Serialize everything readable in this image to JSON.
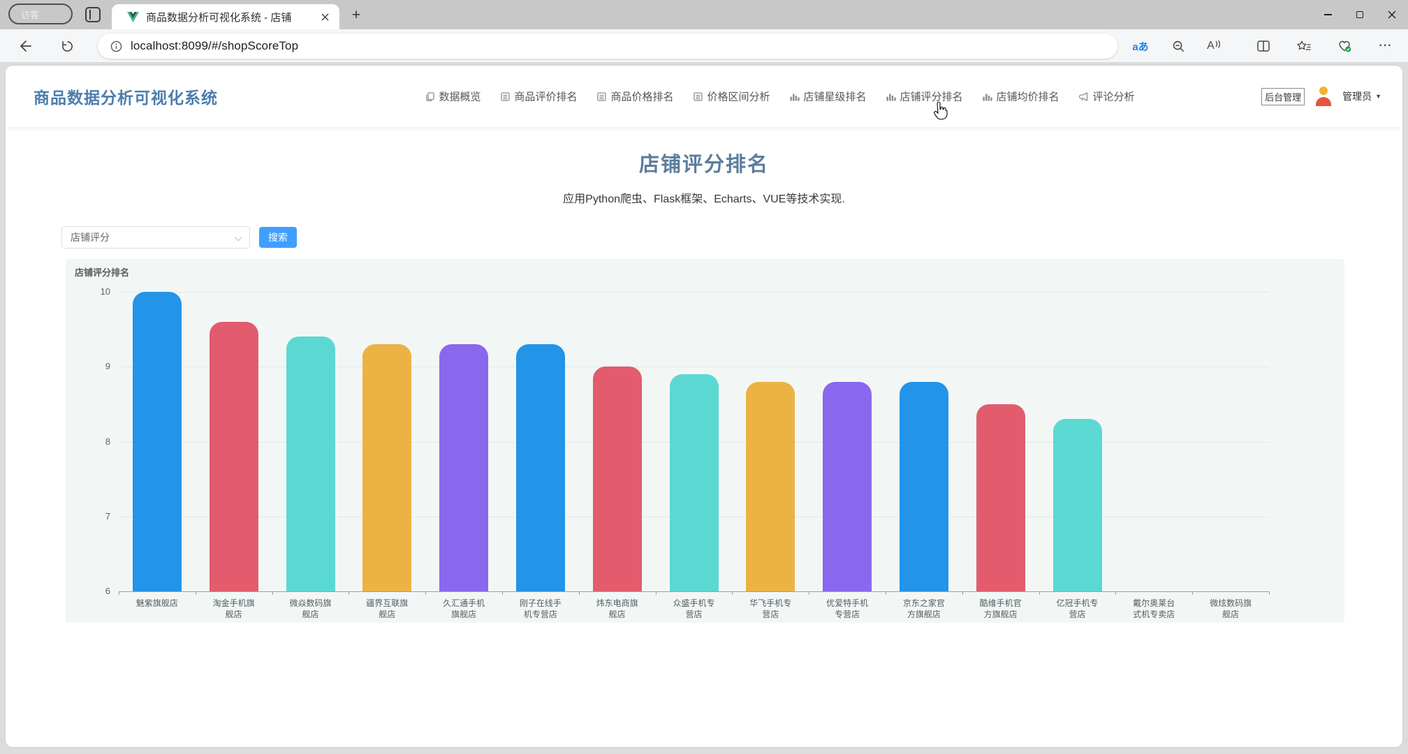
{
  "browser": {
    "profile_label": "访客",
    "tab_title": "商品数据分析可视化系统 - 店铺",
    "url": "localhost:8099/#/shopScoreTop",
    "icons": {
      "translate": "aあ",
      "read_aloud": "A",
      "new_tab": "+",
      "more": "···"
    }
  },
  "header": {
    "app_title": "商品数据分析可视化系统",
    "nav": [
      {
        "label": "数据概览",
        "icon": "copy-icon"
      },
      {
        "label": "商品评价排名",
        "icon": "list-icon"
      },
      {
        "label": "商品价格排名",
        "icon": "list-icon"
      },
      {
        "label": "价格区间分析",
        "icon": "list-icon"
      },
      {
        "label": "店铺星级排名",
        "icon": "bar-chart-icon"
      },
      {
        "label": "店铺评分排名",
        "icon": "bar-chart-icon"
      },
      {
        "label": "店铺均价排名",
        "icon": "bar-chart-icon"
      },
      {
        "label": "评论分析",
        "icon": "megaphone-icon"
      }
    ],
    "admin_button": "后台管理",
    "user_label": "管理员",
    "caret": "▼"
  },
  "main": {
    "page_title": "店铺评分排名",
    "subtitle": "应用Python爬虫、Flask框架、Echarts、VUE等技术实现.",
    "filter_select_value": "店铺评分",
    "search_button": "搜索"
  },
  "chart_data": {
    "type": "bar",
    "title": "店铺评分排名",
    "categories": [
      "魅紫旗舰店",
      "淘金手机旗舰店",
      "微焱数码旗舰店",
      "疆界互联旗舰店",
      "久汇通手机旗舰店",
      "刚子在线手机专营店",
      "炜东电商旗舰店",
      "众盛手机专营店",
      "华飞手机专营店",
      "优爱特手机专营店",
      "京东之家官方旗舰店",
      "酷维手机官方旗舰店",
      "亿冠手机专营店",
      "戴尔奥莱台式机专卖店",
      "微炫数码旗舰店"
    ],
    "values": [
      10,
      9.6,
      9.4,
      9.3,
      9.3,
      9.3,
      9.0,
      8.9,
      8.8,
      8.8,
      8.8,
      8.5,
      8.3,
      null,
      null
    ],
    "bar_colors_cycle": [
      "#2394e8",
      "#e25c6e",
      "#5cd8d3",
      "#ecb344",
      "#8a68ee"
    ],
    "xlabel": "",
    "ylabel": "",
    "ylim": [
      6,
      10
    ],
    "yticks": [
      6,
      7,
      8,
      9,
      10
    ],
    "grid": true,
    "legend": false
  }
}
